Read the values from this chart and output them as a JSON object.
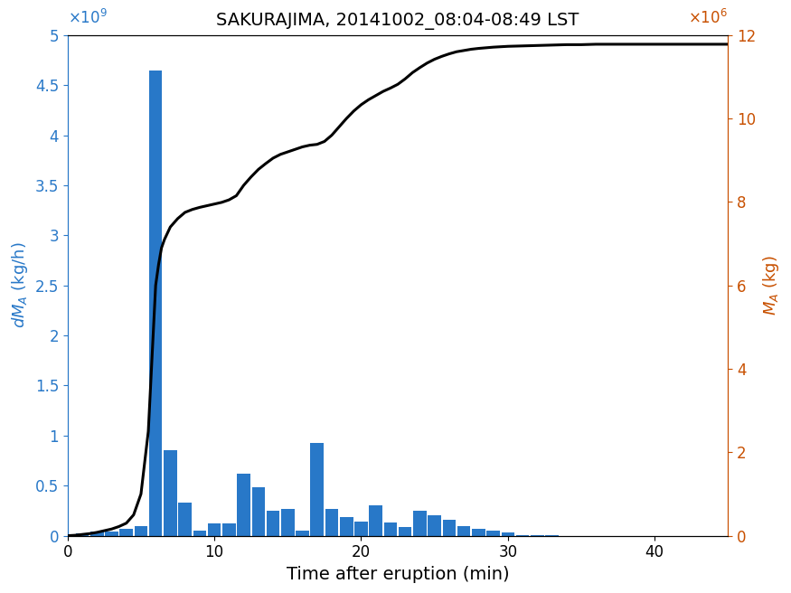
{
  "title": "SAKURAJIMA, 20141002_08:04-08:49 LST",
  "xlabel": "Time after eruption (min)",
  "ylabel_left": "dM_A (kg/h)",
  "ylabel_right": "M_A (kg)",
  "bar_color": "#2878c8",
  "line_color": "#000000",
  "left_axis_color": "#2878c8",
  "right_axis_color": "#c85000",
  "xlim": [
    0,
    45
  ],
  "ylim_left": [
    0,
    5000000000.0
  ],
  "ylim_right": [
    0,
    12000000.0
  ],
  "bar_centers": [
    1,
    2,
    3,
    4,
    5,
    6,
    7,
    8,
    9,
    10,
    11,
    12,
    13,
    14,
    15,
    16,
    17,
    18,
    19,
    20,
    21,
    22,
    23,
    24,
    25,
    26,
    27,
    28,
    29,
    30,
    31,
    32,
    33
  ],
  "bar_heights": [
    20000000.0,
    40000000.0,
    40000000.0,
    70000000.0,
    100000000.0,
    4650000000.0,
    850000000.0,
    330000000.0,
    50000000.0,
    120000000.0,
    120000000.0,
    620000000.0,
    480000000.0,
    250000000.0,
    270000000.0,
    50000000.0,
    930000000.0,
    270000000.0,
    190000000.0,
    140000000.0,
    300000000.0,
    130000000.0,
    90000000.0,
    250000000.0,
    200000000.0,
    160000000.0,
    100000000.0,
    70000000.0,
    50000000.0,
    30000000.0,
    10000000.0,
    5000000.0,
    2000000.0
  ],
  "line_x": [
    0,
    0.5,
    1,
    1.5,
    2,
    2.5,
    3,
    3.5,
    4,
    4.5,
    5,
    5.5,
    6,
    6.2,
    6.4,
    6.6,
    6.8,
    7,
    7.5,
    8,
    8.5,
    9,
    9.5,
    10,
    10.5,
    11,
    11.5,
    12,
    12.5,
    13,
    13.5,
    14,
    14.5,
    15,
    15.5,
    16,
    16.5,
    17,
    17.5,
    18,
    18.5,
    19,
    19.5,
    20,
    20.5,
    21,
    21.5,
    22,
    22.5,
    23,
    23.5,
    24,
    24.5,
    25,
    25.5,
    26,
    26.5,
    27,
    27.5,
    28,
    29,
    30,
    31,
    32,
    33,
    34,
    35,
    36,
    37,
    38,
    39,
    40,
    41,
    42,
    43,
    44,
    45
  ],
  "line_y": [
    0,
    10000.0,
    30000.0,
    50000.0,
    80000.0,
    120000.0,
    160000.0,
    220000.0,
    300000.0,
    500000.0,
    1000000.0,
    2500000.0,
    6000000.0,
    6500000.0,
    6900000.0,
    7100000.0,
    7250000.0,
    7400000.0,
    7600000.0,
    7750000.0,
    7820000.0,
    7870000.0,
    7910000.0,
    7950000.0,
    7990000.0,
    8050000.0,
    8150000.0,
    8400000.0,
    8600000.0,
    8780000.0,
    8920000.0,
    9050000.0,
    9140000.0,
    9200000.0,
    9260000.0,
    9320000.0,
    9360000.0,
    9380000.0,
    9450000.0,
    9600000.0,
    9800000.0,
    10000000.0,
    10180000.0,
    10330000.0,
    10450000.0,
    10550000.0,
    10650000.0,
    10730000.0,
    10820000.0,
    10950000.0,
    11100000.0,
    11220000.0,
    11330000.0,
    11420000.0,
    11490000.0,
    11550000.0,
    11600000.0,
    11630000.0,
    11660000.0,
    11680000.0,
    11710000.0,
    11730000.0,
    11740000.0,
    11750000.0,
    11760000.0,
    11770000.0,
    11770000.0,
    11780000.0,
    11780000.0,
    11780000.0,
    11780000.0,
    11780000.0,
    11780000.0,
    11780000.0,
    11780000.0,
    11780000.0,
    11780000.0
  ],
  "left_ytick_vals": [
    0,
    500000000.0,
    1000000000.0,
    1500000000.0,
    2000000000.0,
    2500000000.0,
    3000000000.0,
    3500000000.0,
    4000000000.0,
    4500000000.0,
    5000000000.0
  ],
  "left_ytick_labels": [
    "0",
    "0.5",
    "1",
    "1.5",
    "2",
    "2.5",
    "3",
    "3.5",
    "4",
    "4.5",
    "5"
  ],
  "right_ytick_vals": [
    0,
    2000000.0,
    4000000.0,
    6000000.0,
    8000000.0,
    10000000.0,
    12000000.0
  ],
  "right_ytick_labels": [
    "0",
    "2",
    "4",
    "6",
    "8",
    "10",
    "12"
  ],
  "xtick_vals": [
    0,
    10,
    20,
    30,
    40
  ],
  "xtick_labels": [
    "0",
    "10",
    "20",
    "30",
    "40"
  ]
}
